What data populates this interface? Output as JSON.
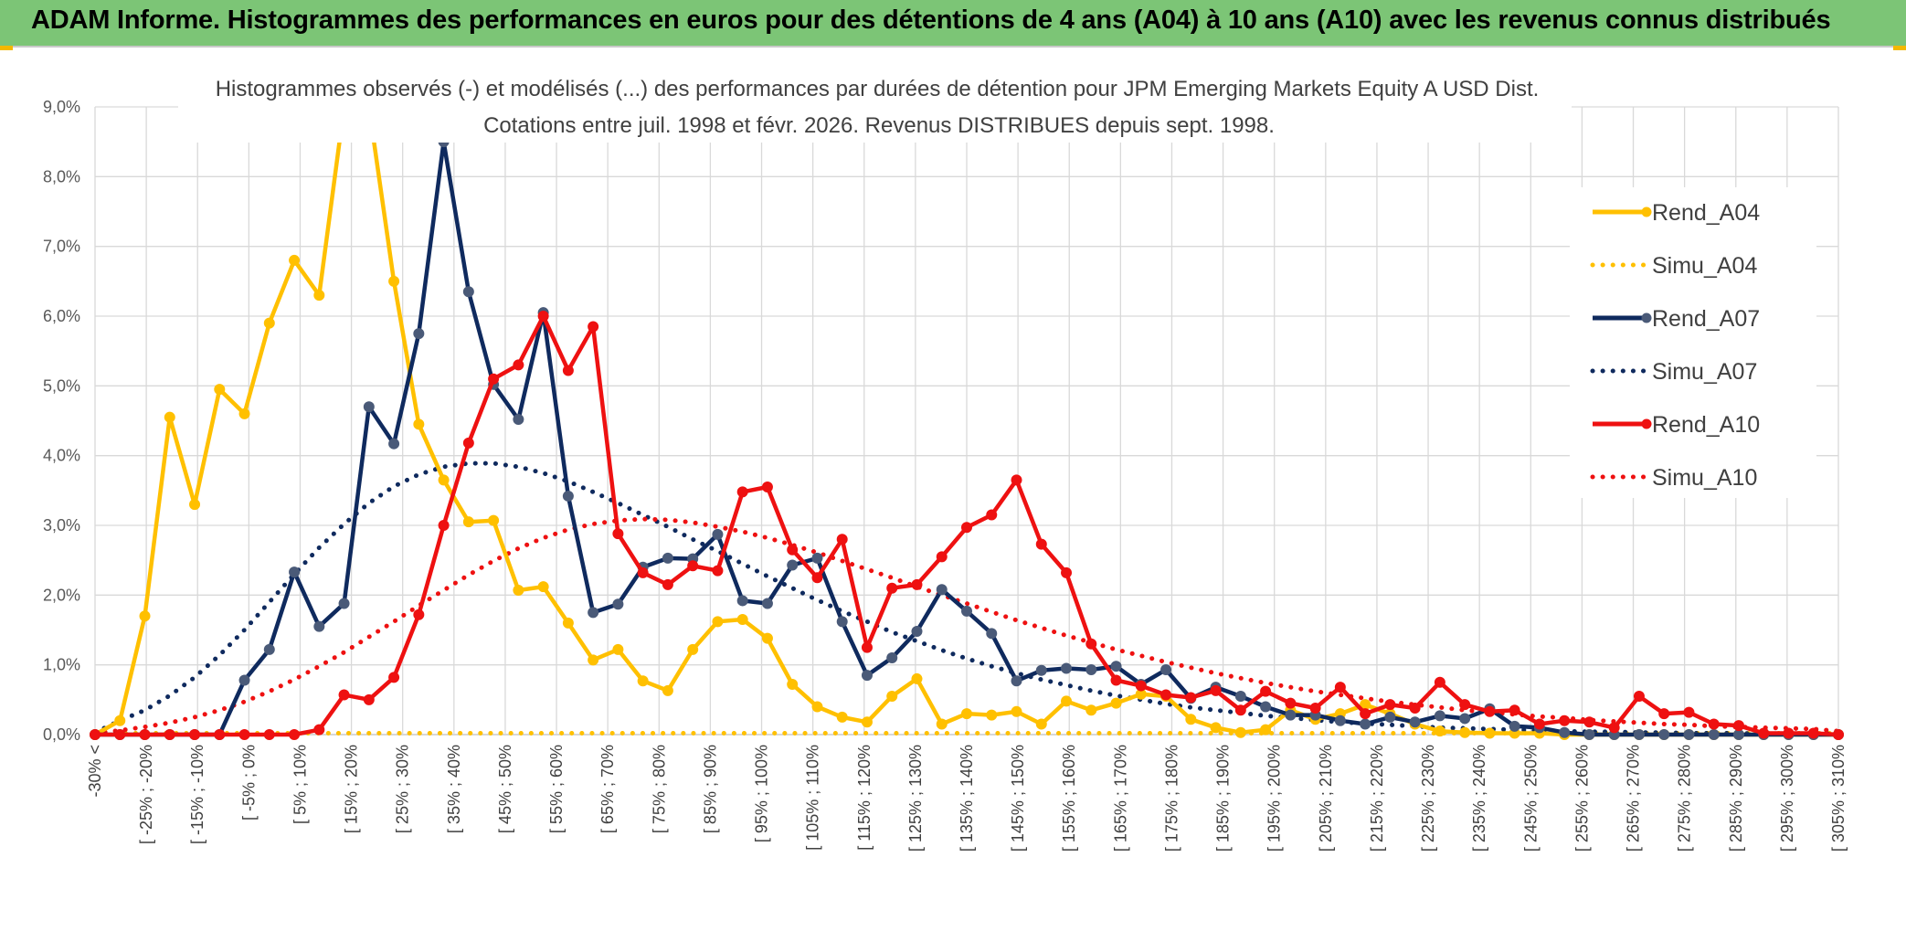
{
  "banner": {
    "title": "ADAM Informe. Histogrammes des performances en euros pour des détentions de 4 ans (A04) à 10 ans (A10) avec les revenus connus distribués",
    "background": "#7cc576"
  },
  "chart_data": {
    "type": "line",
    "title": "Histogrammes observés (-) et modélisés (...) des performances par durées de détention pour JPM Emerging Markets Equity A USD Dist.",
    "subtitle": "Cotations entre juil. 1998 et févr. 2026. Revenus DISTRIBUES depuis sept. 1998.",
    "ylim": [
      0,
      9
    ],
    "y_ticks": [
      "0,0%",
      "1,0%",
      "2,0%",
      "3,0%",
      "4,0%",
      "5,0%",
      "6,0%",
      "7,0%",
      "8,0%",
      "9,0%"
    ],
    "x_tick_labels": [
      "-30% <",
      "[ -25% ; -20%",
      "[ -15% ; -10%",
      "[ -5% ; 0%",
      "[ 5% ; 10%",
      "[ 15% ; 20%",
      "[ 25% ; 30%",
      "[ 35% ; 40%",
      "[ 45% ; 50%",
      "[ 55% ; 60%",
      "[ 65% ; 70%",
      "[ 75% ; 80%",
      "[ 85% ; 90%",
      "[ 95% ; 100%",
      "[ 105% ; 110%",
      "[ 115% ; 120%",
      "[ 125% ; 130%",
      "[ 135% ; 140%",
      "[ 145% ; 150%",
      "[ 155% ; 160%",
      "[ 165% ; 170%",
      "[ 175% ; 180%",
      "[ 185% ; 190%",
      "[ 195% ; 200%",
      "[ 205% ; 210%",
      "[ 215% ; 220%",
      "[ 225% ; 230%",
      "[ 235% ; 240%",
      "[ 245% ; 250%",
      "[ 255% ; 260%",
      "[ 265% ; 270%",
      "[ 275% ; 280%",
      "[ 285% ; 290%",
      "[ 295% ; 300%",
      "[ 305% ; 310%"
    ],
    "grid": true,
    "legend_position": "right",
    "series": [
      {
        "name": "Rend_A04",
        "style": "solid",
        "color": "#ffc000",
        "values": [
          0,
          0.2,
          1.7,
          4.55,
          3.3,
          4.95,
          4.6,
          5.9,
          6.8,
          6.3,
          9.0,
          9.0,
          6.5,
          4.45,
          3.65,
          3.05,
          3.07,
          2.07,
          2.12,
          1.6,
          1.07,
          1.22,
          0.77,
          0.63,
          1.22,
          1.62,
          1.65,
          1.38,
          0.72,
          0.4,
          0.25,
          0.18,
          0.55,
          0.8,
          0.15,
          0.3,
          0.28,
          0.33,
          0.15,
          0.48,
          0.35,
          0.45,
          0.58,
          0.55,
          0.22,
          0.1,
          0.03,
          0.07,
          0.35,
          0.22,
          0.3,
          0.43,
          0.3,
          0.15,
          0.05,
          0.03,
          0.02,
          0.02,
          0.02,
          0,
          0,
          0,
          0,
          0,
          0,
          0,
          0,
          0,
          0,
          0,
          0
        ]
      },
      {
        "name": "Simu_A04",
        "style": "dotted",
        "color": "#ffc000",
        "values": [
          0.02,
          0.02,
          0.02,
          0.02,
          0.02,
          0.02,
          0.02,
          0.02,
          0.02,
          0.02,
          0.02,
          0.02,
          0.02,
          0.02,
          0.02,
          0.02,
          0.02,
          0.02,
          0.02,
          0.02,
          0.02,
          0.02,
          0.02,
          0.02,
          0.02,
          0.02,
          0.02,
          0.02,
          0.02,
          0.02,
          0.02,
          0.02,
          0.02,
          0.02,
          0.02,
          0.02,
          0.02,
          0.02,
          0.02,
          0.02,
          0.02,
          0.02,
          0.02,
          0.02,
          0.02,
          0.02,
          0.02,
          0.02,
          0.02,
          0.02,
          0.02,
          0.02,
          0.02,
          0.02,
          0.02,
          0.02,
          0.02,
          0.02,
          0.02,
          0.02,
          0.02,
          0.02,
          0.02,
          0.02,
          0.02,
          0.02,
          0.02,
          0.02,
          0.02,
          0.02,
          0.02
        ]
      },
      {
        "name": "Rend_A07",
        "style": "solid",
        "color": "#0f2a5e",
        "values": [
          0,
          0,
          0,
          0,
          0,
          0,
          0.78,
          1.22,
          2.33,
          1.55,
          1.88,
          4.7,
          4.17,
          5.75,
          8.5,
          6.35,
          5.02,
          4.52,
          6.05,
          3.42,
          1.75,
          1.87,
          2.4,
          2.53,
          2.52,
          2.87,
          1.92,
          1.88,
          2.43,
          2.53,
          1.62,
          0.85,
          1.1,
          1.48,
          2.08,
          1.77,
          1.45,
          0.77,
          0.92,
          0.95,
          0.93,
          0.98,
          0.72,
          0.93,
          0.52,
          0.68,
          0.55,
          0.4,
          0.28,
          0.28,
          0.2,
          0.15,
          0.25,
          0.18,
          0.27,
          0.23,
          0.37,
          0.12,
          0.1,
          0.03,
          0,
          0,
          0,
          0,
          0,
          0,
          0,
          0,
          0,
          0,
          0
        ]
      },
      {
        "name": "Simu_A07",
        "style": "dotted",
        "color": "#0f2a5e",
        "values": [
          0.03,
          0.2,
          0.35,
          0.56,
          0.82,
          1.14,
          1.5,
          1.9,
          2.3,
          2.68,
          3.02,
          3.32,
          3.56,
          3.73,
          3.84,
          3.89,
          3.89,
          3.84,
          3.75,
          3.63,
          3.48,
          3.32,
          3.15,
          2.98,
          2.8,
          2.63,
          2.45,
          2.27,
          2.1,
          1.93,
          1.77,
          1.62,
          1.47,
          1.34,
          1.21,
          1.09,
          0.98,
          0.88,
          0.79,
          0.71,
          0.63,
          0.56,
          0.5,
          0.44,
          0.39,
          0.35,
          0.31,
          0.27,
          0.24,
          0.21,
          0.18,
          0.16,
          0.14,
          0.12,
          0.1,
          0.09,
          0.08,
          0.07,
          0.06,
          0.05,
          0.04,
          0.04,
          0.03,
          0.03,
          0.02,
          0.02,
          0.02,
          0.01,
          0.01,
          0.01,
          0.01
        ]
      },
      {
        "name": "Rend_A10",
        "style": "solid",
        "color": "#ee1111",
        "values": [
          0,
          0,
          0,
          0,
          0,
          0,
          0,
          0,
          0,
          0.07,
          0.57,
          0.5,
          0.82,
          1.72,
          3.0,
          4.18,
          5.1,
          5.3,
          6.0,
          5.22,
          5.85,
          2.88,
          2.32,
          2.15,
          2.42,
          2.35,
          3.48,
          3.55,
          2.65,
          2.25,
          2.8,
          1.25,
          2.1,
          2.15,
          2.55,
          2.97,
          3.15,
          3.65,
          2.73,
          2.32,
          1.3,
          0.78,
          0.7,
          0.57,
          0.53,
          0.63,
          0.35,
          0.62,
          0.45,
          0.38,
          0.68,
          0.3,
          0.43,
          0.38,
          0.75,
          0.43,
          0.33,
          0.35,
          0.15,
          0.2,
          0.18,
          0.1,
          0.55,
          0.3,
          0.32,
          0.15,
          0.13,
          0.02,
          0.02,
          0.02,
          0
        ]
      },
      {
        "name": "Simu_A10",
        "style": "dotted",
        "color": "#ee1111",
        "values": [
          0.02,
          0.06,
          0.11,
          0.17,
          0.25,
          0.35,
          0.47,
          0.62,
          0.79,
          0.98,
          1.18,
          1.4,
          1.62,
          1.85,
          2.07,
          2.29,
          2.49,
          2.67,
          2.82,
          2.94,
          3.02,
          3.07,
          3.09,
          3.08,
          3.04,
          2.98,
          2.91,
          2.82,
          2.72,
          2.61,
          2.49,
          2.37,
          2.25,
          2.12,
          2.0,
          1.88,
          1.76,
          1.64,
          1.53,
          1.42,
          1.32,
          1.22,
          1.13,
          1.04,
          0.96,
          0.88,
          0.81,
          0.74,
          0.68,
          0.62,
          0.57,
          0.52,
          0.47,
          0.43,
          0.39,
          0.35,
          0.32,
          0.29,
          0.26,
          0.24,
          0.21,
          0.19,
          0.17,
          0.15,
          0.14,
          0.12,
          0.11,
          0.1,
          0.09,
          0.08,
          0.05
        ]
      }
    ]
  }
}
